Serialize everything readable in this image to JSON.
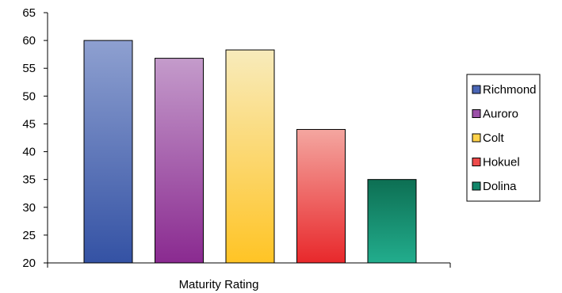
{
  "chart_data": {
    "type": "bar",
    "title": "",
    "xlabel": "Maturity Rating",
    "ylabel": "",
    "ylim": [
      20,
      65
    ],
    "yticks": [
      20,
      25,
      30,
      35,
      40,
      45,
      50,
      55,
      60,
      65
    ],
    "grid": false,
    "legend_position": "right",
    "series": [
      {
        "name": "Richmond",
        "value": 60,
        "color_top": "#8ea0d0",
        "color_bottom": "#3452a4",
        "legend_color": "#4a66b5"
      },
      {
        "name": "Auroro",
        "value": 56.8,
        "color_top": "#c49bcb",
        "color_bottom": "#8a2a90",
        "legend_color": "#9b50a8"
      },
      {
        "name": "Colt",
        "value": 58.3,
        "color_top": "#f8ebbb",
        "color_bottom": "#ffc425",
        "legend_color": "#ffd24a"
      },
      {
        "name": "Hokuel",
        "value": 44,
        "color_top": "#f4a6a0",
        "color_bottom": "#e8282b",
        "legend_color": "#ee4b4b"
      },
      {
        "name": "Dolina",
        "value": 35,
        "color_top": "#0d6f53",
        "color_bottom": "#22ad8d",
        "legend_color": "#12866a"
      }
    ]
  }
}
